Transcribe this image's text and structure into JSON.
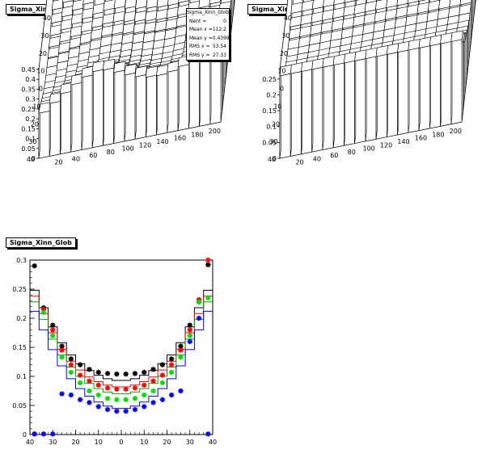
{
  "chart_data": [
    {
      "type": "lego3d",
      "title": "Sigma_Xinn_Glob",
      "x_ticks": [
        "20",
        "40",
        "60",
        "80",
        "100",
        "120",
        "140",
        "160",
        "180",
        "200"
      ],
      "y_ticks": [
        "40",
        "30",
        "20",
        "10",
        "0",
        "10",
        "20",
        "30",
        "40"
      ],
      "z_ticks": [
        "0",
        "0.05",
        "0.1",
        "0.15",
        "0.2",
        "0.25",
        "0.3",
        "0.35",
        "0.4",
        "0.45"
      ],
      "zlim": [
        0,
        0.45
      ],
      "stats": {
        "name": "Sigma_Xinn_Glob",
        "rows": [
          {
            "label": "Nent =",
            "value": "0"
          },
          {
            "label": "Mean x =",
            "value": "112.2"
          },
          {
            "label": "Mean y =",
            "value": "0.4399"
          },
          {
            "label": "RMS x =",
            "value": "53.54"
          },
          {
            "label": "RMS y =",
            "value": "27.33"
          }
        ]
      }
    },
    {
      "type": "lego3d",
      "title": "Sigma_Xinn_Glob",
      "x_ticks": [
        "20",
        "40",
        "60",
        "80",
        "100",
        "120",
        "140",
        "160",
        "180",
        "200"
      ],
      "y_ticks": [
        "40",
        "30",
        "20",
        "10",
        "0",
        "10",
        "20",
        "30",
        "40"
      ],
      "z_ticks": [
        "0",
        "0.05",
        "0.1",
        "0.15",
        "0.2",
        "0.25"
      ],
      "zlim": [
        0,
        0.28
      ]
    },
    {
      "type": "step_scatter",
      "title": "Sigma_Xinn_Glob",
      "x_ticks": [
        "40",
        "30",
        "20",
        "10",
        "0",
        "10",
        "20",
        "30",
        "40"
      ],
      "y_ticks": [
        "0",
        "0.05",
        "0.1",
        "0.15",
        "0.2",
        "0.25",
        "0.3"
      ],
      "xlim": [
        -40,
        40
      ],
      "ylim": [
        0,
        0.3
      ],
      "x": [
        -38,
        -34,
        -30,
        -26,
        -22,
        -18,
        -14,
        -10,
        -6,
        -2,
        2,
        6,
        10,
        14,
        18,
        22,
        26,
        30,
        34,
        38
      ],
      "steps": [
        {
          "color": "#000000",
          "values": [
            0.248,
            0.218,
            0.185,
            0.158,
            0.137,
            0.122,
            0.11,
            0.102,
            0.096,
            0.093,
            0.093,
            0.096,
            0.102,
            0.11,
            0.122,
            0.137,
            0.158,
            0.185,
            0.218,
            0.248
          ]
        },
        {
          "color": "#ff0000",
          "values": [
            0.238,
            0.208,
            0.175,
            0.147,
            0.126,
            0.111,
            0.099,
            0.091,
            0.085,
            0.082,
            0.082,
            0.085,
            0.091,
            0.099,
            0.111,
            0.126,
            0.147,
            0.175,
            0.208,
            0.238
          ]
        },
        {
          "color": "#00aa00",
          "values": [
            0.228,
            0.198,
            0.164,
            0.137,
            0.116,
            0.1,
            0.088,
            0.079,
            0.073,
            0.07,
            0.07,
            0.073,
            0.079,
            0.088,
            0.1,
            0.116,
            0.137,
            0.164,
            0.198,
            0.228
          ]
        },
        {
          "color": "#0000ff",
          "values": [
            0.212,
            0.18,
            0.146,
            0.118,
            0.096,
            0.079,
            0.066,
            0.056,
            0.049,
            0.045,
            0.045,
            0.049,
            0.056,
            0.066,
            0.079,
            0.096,
            0.118,
            0.146,
            0.18,
            0.212
          ]
        }
      ],
      "series": [
        {
          "color": "#000000",
          "values": [
            0.29,
            0.218,
            0.188,
            0.152,
            0.13,
            0.12,
            0.112,
            0.107,
            0.105,
            0.104,
            0.104,
            0.105,
            0.107,
            0.112,
            0.12,
            0.13,
            0.152,
            0.188,
            0.228,
            0.292
          ]
        },
        {
          "color": "#ff0000",
          "values": [
            0.001,
            0.215,
            0.18,
            0.145,
            0.12,
            0.102,
            0.092,
            0.085,
            0.08,
            0.078,
            0.078,
            0.08,
            0.085,
            0.092,
            0.102,
            0.12,
            0.145,
            0.18,
            0.232,
            0.3
          ]
        },
        {
          "color": "#00dd00",
          "values": [
            0.001,
            0.21,
            0.17,
            0.133,
            0.107,
            0.089,
            0.075,
            0.068,
            0.062,
            0.06,
            0.06,
            0.062,
            0.068,
            0.075,
            0.089,
            0.107,
            0.133,
            0.17,
            0.228,
            0.235
          ]
        },
        {
          "color": "#0000ff",
          "values": [
            0.001,
            0.001,
            0.001,
            0.07,
            0.068,
            0.06,
            0.055,
            0.048,
            0.043,
            0.04,
            0.04,
            0.043,
            0.048,
            0.055,
            0.06,
            0.068,
            0.075,
            0.16,
            0.2,
            0.001
          ]
        }
      ]
    }
  ]
}
